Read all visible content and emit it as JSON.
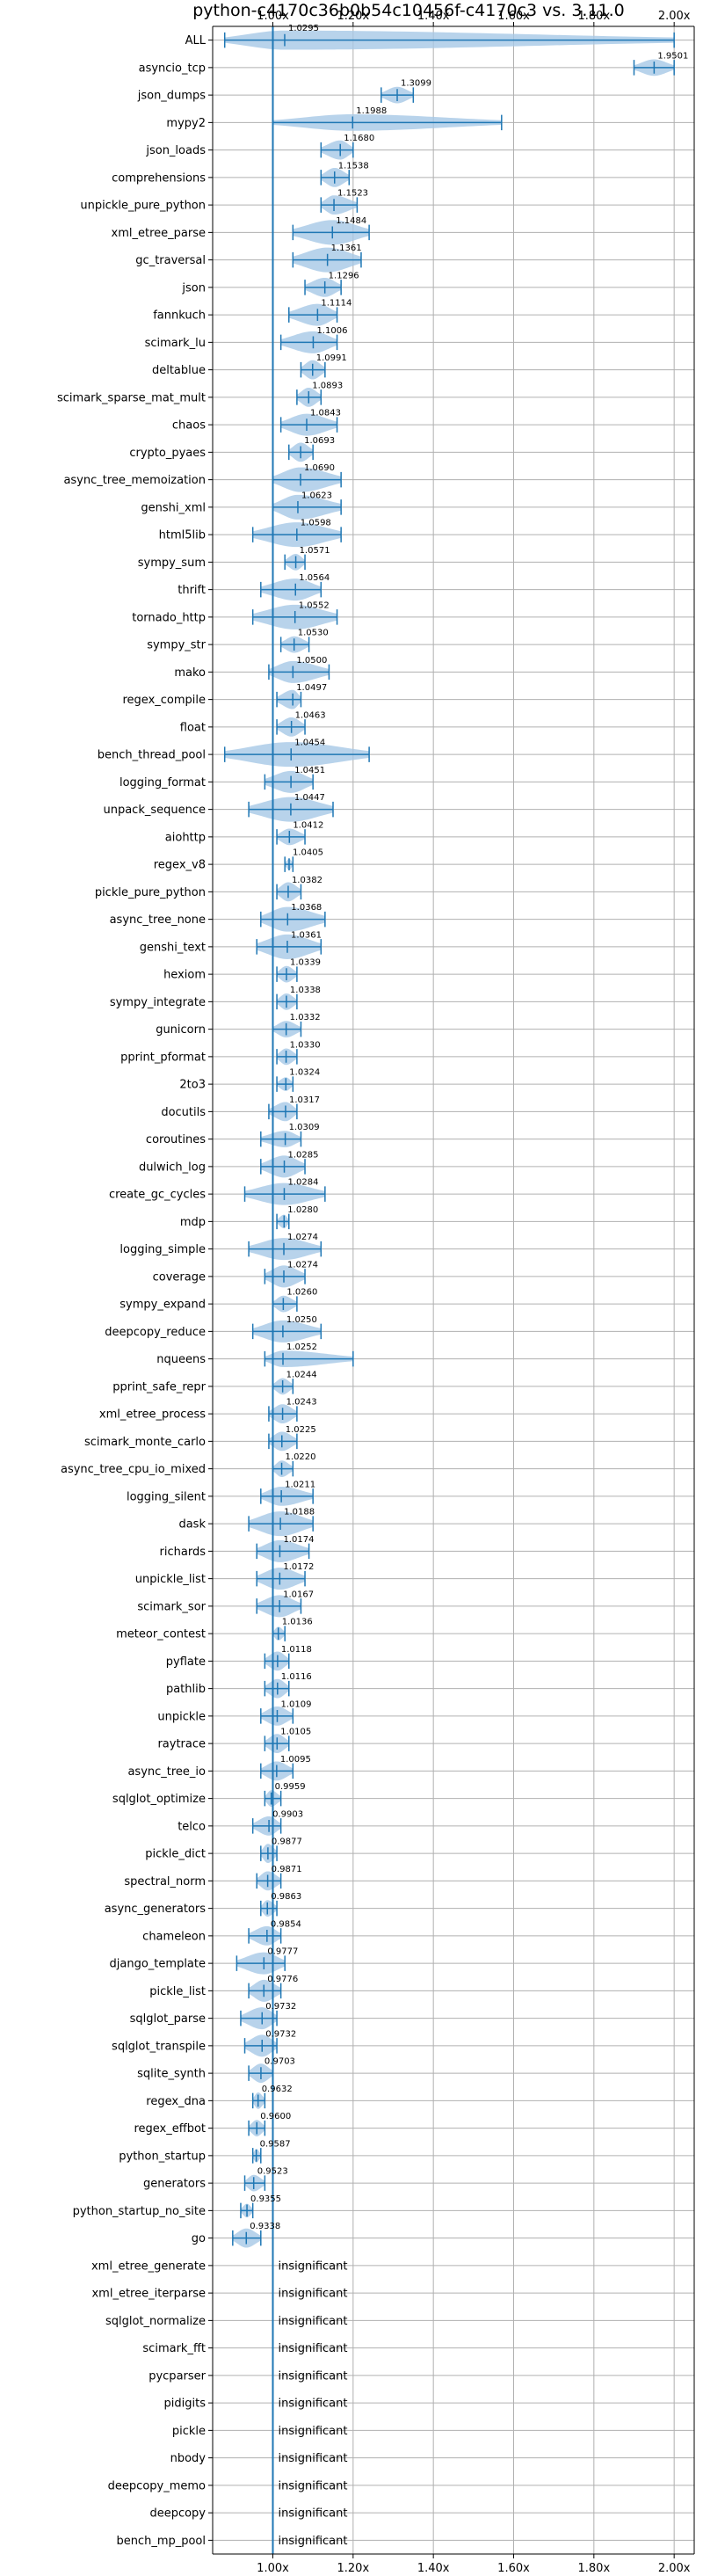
{
  "chart_data": {
    "type": "violin",
    "title": "python-c4170c36b0b54c10456f-c4170c3 vs. 3.11.0",
    "xlabel": "",
    "ylabel": "",
    "xlim": [
      0.85,
      2.05
    ],
    "ticks": [
      1.0,
      1.2,
      1.4,
      1.6,
      1.8,
      2.0
    ],
    "tick_labels": [
      "1.00x",
      "1.20x",
      "1.40x",
      "1.60x",
      "1.80x",
      "2.00x"
    ],
    "axes_position": "top-and-bottom",
    "grid": true,
    "reference_line": 1.0,
    "colors": {
      "violin": "#a6c8e6",
      "line": "#1f77b4",
      "grid": "#b0b0b0"
    },
    "insignificant_label": "insignificant",
    "benchmarks": [
      {
        "name": "ALL",
        "value": 1.0295,
        "min": 0.88,
        "max": 2.0,
        "label": "1.0295",
        "width": 0.7
      },
      {
        "name": "asyncio_tcp",
        "value": 1.9501,
        "min": 1.9,
        "max": 2.0,
        "label": "1.9501",
        "width": 0.6
      },
      {
        "name": "json_dumps",
        "value": 1.3099,
        "min": 1.27,
        "max": 1.35,
        "label": "1.3099",
        "width": 0.6
      },
      {
        "name": "mypy2",
        "value": 1.1988,
        "min": 1.0,
        "max": 1.57,
        "label": "1.1988",
        "width": 0.6
      },
      {
        "name": "json_loads",
        "value": 1.168,
        "min": 1.12,
        "max": 1.2,
        "label": "1.1680",
        "width": 0.7
      },
      {
        "name": "comprehensions",
        "value": 1.1538,
        "min": 1.12,
        "max": 1.19,
        "label": "1.1538",
        "width": 0.7
      },
      {
        "name": "unpickle_pure_python",
        "value": 1.1523,
        "min": 1.12,
        "max": 1.21,
        "label": "1.1523",
        "width": 0.7
      },
      {
        "name": "xml_etree_parse",
        "value": 1.1484,
        "min": 1.05,
        "max": 1.24,
        "label": "1.1484",
        "width": 0.9
      },
      {
        "name": "gc_traversal",
        "value": 1.1361,
        "min": 1.05,
        "max": 1.22,
        "label": "1.1361",
        "width": 0.9
      },
      {
        "name": "json",
        "value": 1.1296,
        "min": 1.08,
        "max": 1.17,
        "label": "1.1296",
        "width": 0.7
      },
      {
        "name": "fannkuch",
        "value": 1.1114,
        "min": 1.04,
        "max": 1.16,
        "label": "1.1114",
        "width": 0.8
      },
      {
        "name": "scimark_lu",
        "value": 1.1006,
        "min": 1.02,
        "max": 1.16,
        "label": "1.1006",
        "width": 0.8
      },
      {
        "name": "deltablue",
        "value": 1.0991,
        "min": 1.07,
        "max": 1.13,
        "label": "1.0991",
        "width": 0.7
      },
      {
        "name": "scimark_sparse_mat_mult",
        "value": 1.0893,
        "min": 1.06,
        "max": 1.12,
        "label": "1.0893",
        "width": 0.7
      },
      {
        "name": "chaos",
        "value": 1.0843,
        "min": 1.02,
        "max": 1.16,
        "label": "1.0843",
        "width": 0.8
      },
      {
        "name": "crypto_pyaes",
        "value": 1.0693,
        "min": 1.04,
        "max": 1.1,
        "label": "1.0693",
        "width": 0.7
      },
      {
        "name": "async_tree_memoization",
        "value": 1.069,
        "min": 1.0,
        "max": 1.17,
        "label": "1.0690",
        "width": 0.9
      },
      {
        "name": "genshi_xml",
        "value": 1.0623,
        "min": 1.0,
        "max": 1.17,
        "label": "1.0623",
        "width": 0.9
      },
      {
        "name": "html5lib",
        "value": 1.0598,
        "min": 0.95,
        "max": 1.17,
        "label": "1.0598",
        "width": 0.9
      },
      {
        "name": "sympy_sum",
        "value": 1.0571,
        "min": 1.03,
        "max": 1.08,
        "label": "1.0571",
        "width": 0.6
      },
      {
        "name": "thrift",
        "value": 1.0564,
        "min": 0.97,
        "max": 1.12,
        "label": "1.0564",
        "width": 0.8
      },
      {
        "name": "tornado_http",
        "value": 1.0552,
        "min": 0.95,
        "max": 1.16,
        "label": "1.0552",
        "width": 0.9
      },
      {
        "name": "sympy_str",
        "value": 1.053,
        "min": 1.02,
        "max": 1.09,
        "label": "1.0530",
        "width": 0.6
      },
      {
        "name": "mako",
        "value": 1.05,
        "min": 0.99,
        "max": 1.14,
        "label": "1.0500",
        "width": 0.8
      },
      {
        "name": "regex_compile",
        "value": 1.0497,
        "min": 1.01,
        "max": 1.07,
        "label": "1.0497",
        "width": 0.7
      },
      {
        "name": "float",
        "value": 1.0463,
        "min": 1.01,
        "max": 1.08,
        "label": "1.0463",
        "width": 0.7
      },
      {
        "name": "bench_thread_pool",
        "value": 1.0454,
        "min": 0.88,
        "max": 1.24,
        "label": "1.0454",
        "width": 0.9
      },
      {
        "name": "logging_format",
        "value": 1.0451,
        "min": 0.98,
        "max": 1.1,
        "label": "1.0451",
        "width": 0.8
      },
      {
        "name": "unpack_sequence",
        "value": 1.0447,
        "min": 0.94,
        "max": 1.15,
        "label": "1.0447",
        "width": 0.9
      },
      {
        "name": "aiohttp",
        "value": 1.0412,
        "min": 1.01,
        "max": 1.08,
        "label": "1.0412",
        "width": 0.6
      },
      {
        "name": "regex_v8",
        "value": 1.0405,
        "min": 1.03,
        "max": 1.05,
        "label": "1.0405",
        "width": 0.4
      },
      {
        "name": "pickle_pure_python",
        "value": 1.0382,
        "min": 1.01,
        "max": 1.07,
        "label": "1.0382",
        "width": 0.7
      },
      {
        "name": "async_tree_none",
        "value": 1.0368,
        "min": 0.97,
        "max": 1.13,
        "label": "1.0368",
        "width": 0.9
      },
      {
        "name": "genshi_text",
        "value": 1.0361,
        "min": 0.96,
        "max": 1.12,
        "label": "1.0361",
        "width": 0.9
      },
      {
        "name": "hexiom",
        "value": 1.0339,
        "min": 1.01,
        "max": 1.06,
        "label": "1.0339",
        "width": 0.6
      },
      {
        "name": "sympy_integrate",
        "value": 1.0338,
        "min": 1.01,
        "max": 1.06,
        "label": "1.0338",
        "width": 0.6
      },
      {
        "name": "gunicorn",
        "value": 1.0332,
        "min": 1.0,
        "max": 1.07,
        "label": "1.0332",
        "width": 0.6
      },
      {
        "name": "pprint_pformat",
        "value": 1.033,
        "min": 1.01,
        "max": 1.06,
        "label": "1.0330",
        "width": 0.6
      },
      {
        "name": "2to3",
        "value": 1.0324,
        "min": 1.01,
        "max": 1.05,
        "label": "1.0324",
        "width": 0.5
      },
      {
        "name": "docutils",
        "value": 1.0317,
        "min": 0.99,
        "max": 1.06,
        "label": "1.0317",
        "width": 0.7
      },
      {
        "name": "coroutines",
        "value": 1.0309,
        "min": 0.97,
        "max": 1.07,
        "label": "1.0309",
        "width": 0.6
      },
      {
        "name": "dulwich_log",
        "value": 1.0285,
        "min": 0.97,
        "max": 1.08,
        "label": "1.0285",
        "width": 0.8
      },
      {
        "name": "create_gc_cycles",
        "value": 1.0284,
        "min": 0.93,
        "max": 1.13,
        "label": "1.0284",
        "width": 0.8
      },
      {
        "name": "mdp",
        "value": 1.028,
        "min": 1.01,
        "max": 1.04,
        "label": "1.0280",
        "width": 0.5
      },
      {
        "name": "logging_simple",
        "value": 1.0274,
        "min": 0.94,
        "max": 1.12,
        "label": "1.0274",
        "width": 0.8
      },
      {
        "name": "coverage",
        "value": 1.0274,
        "min": 0.98,
        "max": 1.08,
        "label": "1.0274",
        "width": 0.8
      },
      {
        "name": "sympy_expand",
        "value": 1.026,
        "min": 1.0,
        "max": 1.06,
        "label": "1.0260",
        "width": 0.6
      },
      {
        "name": "deepcopy_reduce",
        "value": 1.025,
        "min": 0.95,
        "max": 1.12,
        "label": "1.0250",
        "width": 0.8
      },
      {
        "name": "nqueens",
        "value": 1.0252,
        "min": 0.98,
        "max": 1.2,
        "label": "1.0252",
        "width": 0.6
      },
      {
        "name": "pprint_safe_repr",
        "value": 1.0244,
        "min": 1.0,
        "max": 1.05,
        "label": "1.0244",
        "width": 0.6
      },
      {
        "name": "xml_etree_process",
        "value": 1.0243,
        "min": 0.99,
        "max": 1.06,
        "label": "1.0243",
        "width": 0.7
      },
      {
        "name": "scimark_monte_carlo",
        "value": 1.0225,
        "min": 0.99,
        "max": 1.06,
        "label": "1.0225",
        "width": 0.7
      },
      {
        "name": "async_tree_cpu_io_mixed",
        "value": 1.022,
        "min": 1.0,
        "max": 1.05,
        "label": "1.0220",
        "width": 0.6
      },
      {
        "name": "logging_silent",
        "value": 1.0211,
        "min": 0.97,
        "max": 1.1,
        "label": "1.0211",
        "width": 0.7
      },
      {
        "name": "dask",
        "value": 1.0188,
        "min": 0.94,
        "max": 1.1,
        "label": "1.0188",
        "width": 0.9
      },
      {
        "name": "richards",
        "value": 1.0174,
        "min": 0.96,
        "max": 1.09,
        "label": "1.0174",
        "width": 0.8
      },
      {
        "name": "unpickle_list",
        "value": 1.0172,
        "min": 0.96,
        "max": 1.08,
        "label": "1.0172",
        "width": 0.8
      },
      {
        "name": "scimark_sor",
        "value": 1.0167,
        "min": 0.96,
        "max": 1.07,
        "label": "1.0167",
        "width": 0.8
      },
      {
        "name": "meteor_contest",
        "value": 1.0136,
        "min": 1.0,
        "max": 1.03,
        "label": "1.0136",
        "width": 0.5
      },
      {
        "name": "pyflate",
        "value": 1.0118,
        "min": 0.98,
        "max": 1.04,
        "label": "1.0118",
        "width": 0.7
      },
      {
        "name": "pathlib",
        "value": 1.0116,
        "min": 0.98,
        "max": 1.04,
        "label": "1.0116",
        "width": 0.7
      },
      {
        "name": "unpickle",
        "value": 1.0109,
        "min": 0.97,
        "max": 1.05,
        "label": "1.0109",
        "width": 0.7
      },
      {
        "name": "raytrace",
        "value": 1.0105,
        "min": 0.98,
        "max": 1.04,
        "label": "1.0105",
        "width": 0.7
      },
      {
        "name": "async_tree_io",
        "value": 1.0095,
        "min": 0.97,
        "max": 1.05,
        "label": "1.0095",
        "width": 0.7
      },
      {
        "name": "sqlglot_optimize",
        "value": 0.9959,
        "min": 0.98,
        "max": 1.02,
        "label": "0.9959",
        "width": 0.6
      },
      {
        "name": "telco",
        "value": 0.9903,
        "min": 0.95,
        "max": 1.02,
        "label": "0.9903",
        "width": 0.7
      },
      {
        "name": "pickle_dict",
        "value": 0.9877,
        "min": 0.97,
        "max": 1.01,
        "label": "0.9877",
        "width": 0.7
      },
      {
        "name": "spectral_norm",
        "value": 0.9871,
        "min": 0.96,
        "max": 1.02,
        "label": "0.9871",
        "width": 0.7
      },
      {
        "name": "async_generators",
        "value": 0.9863,
        "min": 0.97,
        "max": 1.01,
        "label": "0.9863",
        "width": 0.6
      },
      {
        "name": "chameleon",
        "value": 0.9854,
        "min": 0.94,
        "max": 1.02,
        "label": "0.9854",
        "width": 0.7
      },
      {
        "name": "django_template",
        "value": 0.9777,
        "min": 0.91,
        "max": 1.03,
        "label": "0.9777",
        "width": 0.8
      },
      {
        "name": "pickle_list",
        "value": 0.9776,
        "min": 0.94,
        "max": 1.02,
        "label": "0.9776",
        "width": 0.8
      },
      {
        "name": "sqlglot_parse",
        "value": 0.9732,
        "min": 0.92,
        "max": 1.01,
        "label": "0.9732",
        "width": 0.8
      },
      {
        "name": "sqlglot_transpile",
        "value": 0.9732,
        "min": 0.93,
        "max": 1.01,
        "label": "0.9732",
        "width": 0.8
      },
      {
        "name": "sqlite_synth",
        "value": 0.9703,
        "min": 0.94,
        "max": 1.0,
        "label": "0.9703",
        "width": 0.7
      },
      {
        "name": "regex_dna",
        "value": 0.9632,
        "min": 0.95,
        "max": 0.98,
        "label": "0.9632",
        "width": 0.6
      },
      {
        "name": "regex_effbot",
        "value": 0.96,
        "min": 0.94,
        "max": 0.98,
        "label": "0.9600",
        "width": 0.6
      },
      {
        "name": "python_startup",
        "value": 0.9587,
        "min": 0.95,
        "max": 0.97,
        "label": "0.9587",
        "width": 0.5
      },
      {
        "name": "generators",
        "value": 0.9523,
        "min": 0.93,
        "max": 0.98,
        "label": "0.9523",
        "width": 0.6
      },
      {
        "name": "python_startup_no_site",
        "value": 0.9355,
        "min": 0.92,
        "max": 0.95,
        "label": "0.9355",
        "width": 0.5
      },
      {
        "name": "go",
        "value": 0.9338,
        "min": 0.9,
        "max": 0.97,
        "label": "0.9338",
        "width": 0.7
      },
      {
        "name": "xml_etree_generate",
        "insignificant": true
      },
      {
        "name": "xml_etree_iterparse",
        "insignificant": true
      },
      {
        "name": "sqlglot_normalize",
        "insignificant": true
      },
      {
        "name": "scimark_fft",
        "insignificant": true
      },
      {
        "name": "pycparser",
        "insignificant": true
      },
      {
        "name": "pidigits",
        "insignificant": true
      },
      {
        "name": "pickle",
        "insignificant": true
      },
      {
        "name": "nbody",
        "insignificant": true
      },
      {
        "name": "deepcopy_memo",
        "insignificant": true
      },
      {
        "name": "deepcopy",
        "insignificant": true
      },
      {
        "name": "bench_mp_pool",
        "insignificant": true
      }
    ]
  }
}
